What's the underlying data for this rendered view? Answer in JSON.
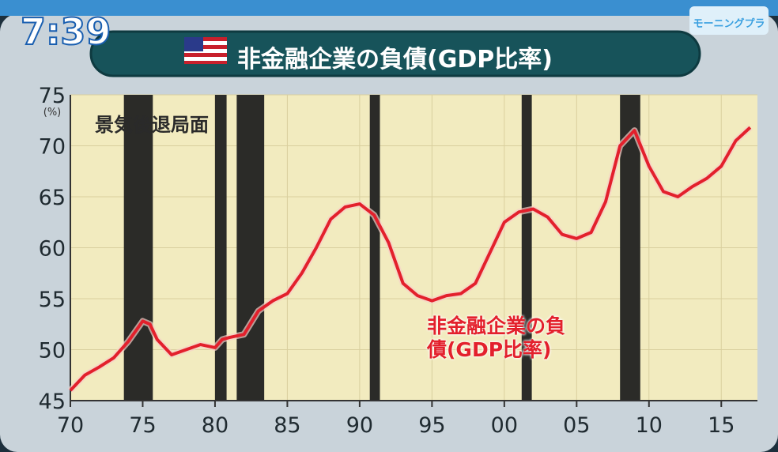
{
  "clock": "7:39",
  "logo": "モーニングプラ",
  "chart_data": {
    "type": "line",
    "title": "非金融企業の負債(GDP比率)",
    "y_unit": "(%)",
    "annotation": "景気後退局面",
    "xlim": [
      1970,
      2017.5
    ],
    "ylim": [
      45,
      75
    ],
    "xticks": [
      {
        "value": 1970,
        "label": "70"
      },
      {
        "value": 1975,
        "label": "75"
      },
      {
        "value": 1980,
        "label": "80"
      },
      {
        "value": 1985,
        "label": "85"
      },
      {
        "value": 1990,
        "label": "90"
      },
      {
        "value": 1995,
        "label": "95"
      },
      {
        "value": 2000,
        "label": "00"
      },
      {
        "value": 2005,
        "label": "05"
      },
      {
        "value": 2010,
        "label": "10"
      },
      {
        "value": 2015,
        "label": "15"
      }
    ],
    "yticks": [
      45,
      50,
      55,
      60,
      65,
      70,
      75
    ],
    "grid": true,
    "recessions": [
      [
        1973.7,
        1975.7
      ],
      [
        1980.0,
        1980.8
      ],
      [
        1981.5,
        1983.4
      ],
      [
        1990.7,
        1991.4
      ],
      [
        2001.2,
        2001.9
      ],
      [
        2008.0,
        2009.4
      ]
    ],
    "x": [
      1970,
      1971,
      1972,
      1973,
      1974,
      1975,
      1975.5,
      1976,
      1977,
      1978,
      1979,
      1980,
      1980.5,
      1981,
      1982,
      1983,
      1984,
      1985,
      1986,
      1987,
      1988,
      1989,
      1990,
      1991,
      1992,
      1993,
      1994,
      1995,
      1996,
      1997,
      1998,
      1999,
      2000,
      2001,
      2002,
      2003,
      2004,
      2005,
      2006,
      2007,
      2008,
      2009,
      2010,
      2011,
      2012,
      2013,
      2014,
      2015,
      2016,
      2017
    ],
    "series": [
      {
        "name": "非金融企業の負債(GDP比率)",
        "color": "#e3202c",
        "values": [
          46.0,
          47.5,
          48.3,
          49.2,
          50.8,
          52.8,
          52.5,
          51.0,
          49.5,
          50.0,
          50.5,
          50.2,
          51.0,
          51.2,
          51.5,
          53.8,
          54.8,
          55.5,
          57.5,
          60.0,
          62.8,
          64.0,
          64.3,
          63.2,
          60.5,
          56.5,
          55.3,
          54.8,
          55.3,
          55.5,
          56.5,
          59.5,
          62.5,
          63.5,
          63.8,
          63.0,
          61.3,
          60.9,
          61.5,
          64.5,
          70.0,
          71.5,
          68.0,
          65.5,
          65.0,
          66.0,
          66.8,
          68.0,
          70.5,
          71.8
        ]
      }
    ]
  }
}
